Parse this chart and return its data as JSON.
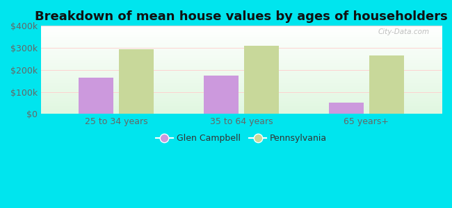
{
  "title": "Breakdown of mean house values by ages of householders",
  "categories": [
    "25 to 34 years",
    "35 to 64 years",
    "65 years+"
  ],
  "glen_campbell": [
    165000,
    175000,
    50000
  ],
  "pennsylvania": [
    295000,
    310000,
    265000
  ],
  "glen_campbell_color": "#cc99dd",
  "pennsylvania_color": "#c8d89a",
  "background_color": "#00e5ee",
  "ylim": [
    0,
    400000
  ],
  "yticks": [
    0,
    100000,
    200000,
    300000,
    400000
  ],
  "bar_width": 0.28,
  "legend_labels": [
    "Glen Campbell",
    "Pennsylvania"
  ],
  "watermark": "City-Data.com",
  "title_fontsize": 13,
  "tick_fontsize": 9,
  "legend_fontsize": 9
}
